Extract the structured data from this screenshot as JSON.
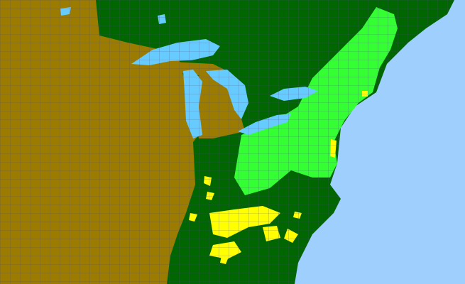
{
  "map": {
    "colors": {
      "ocean": "#9fcffc",
      "lakes": "#66ccff",
      "region_brown": "#9c7c00",
      "region_dark_green": "#006600",
      "region_bright_green": "#33ff33",
      "region_yellow": "#ffff00",
      "county_lines": "#4a4a80"
    }
  }
}
